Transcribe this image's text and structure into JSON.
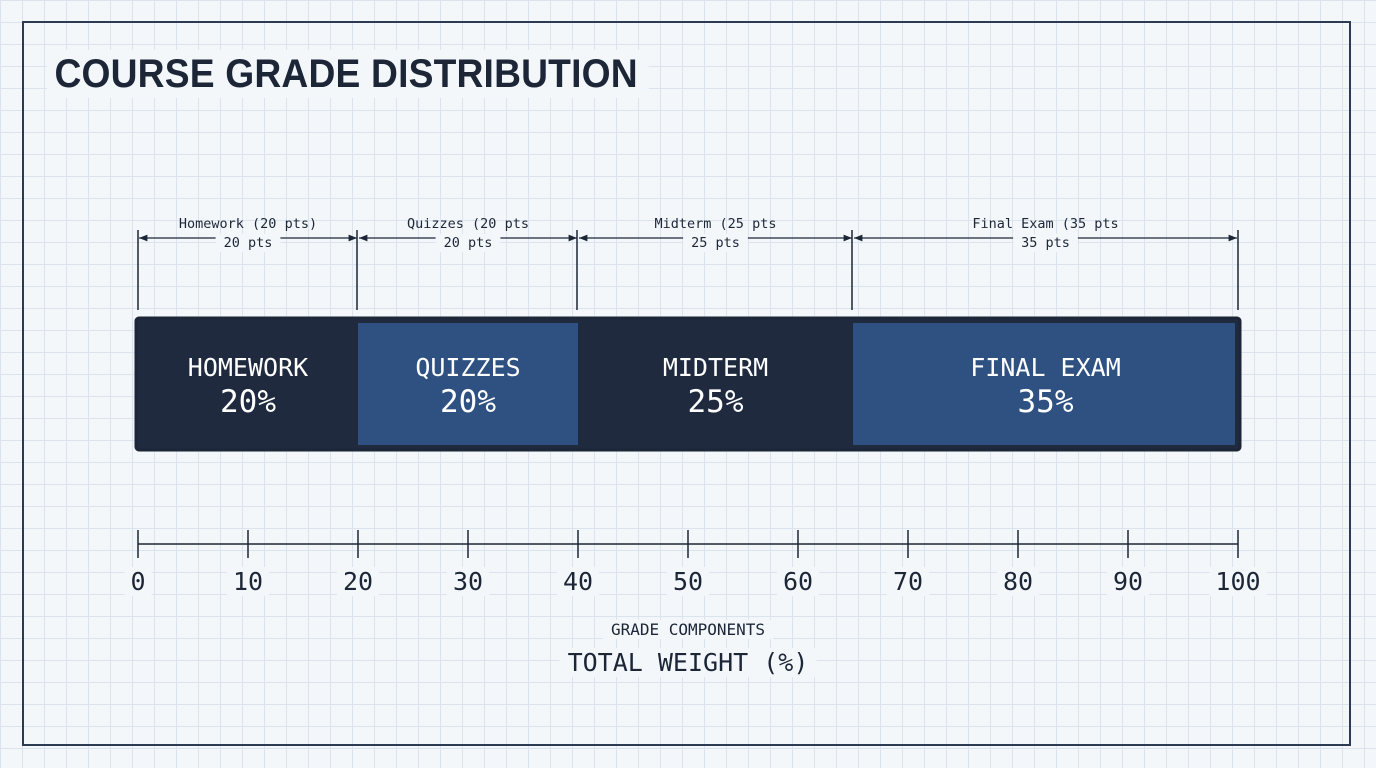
{
  "title": "COURSE GRADE DISTRIBUTION",
  "chart_data": {
    "type": "bar",
    "orientation": "horizontal-stacked",
    "series": [
      {
        "name": "HOMEWORK",
        "value": 20,
        "label": "20%",
        "dim_label": "Homework (20 pts)",
        "dim_sub": "20 pts",
        "color": "#1f2a3f"
      },
      {
        "name": "QUIZZES",
        "value": 20,
        "label": "20%",
        "dim_label": "Quizzes (20 pts",
        "dim_sub": "20 pts",
        "color": "#2e5182"
      },
      {
        "name": "MIDTERM",
        "value": 25,
        "label": "25%",
        "dim_label": "Midterm (25 pts",
        "dim_sub": "25 pts",
        "color": "#1f2a3f"
      },
      {
        "name": "FINAL EXAM",
        "value": 35,
        "label": "35%",
        "dim_label": "Final Exam (35 pts",
        "dim_sub": "35 pts",
        "color": "#2e5182"
      }
    ],
    "xlim": [
      0,
      100
    ],
    "ticks": [
      0,
      10,
      20,
      30,
      40,
      50,
      60,
      70,
      80,
      90,
      100
    ],
    "xlabel_top": "GRADE COMPONENTS",
    "xlabel": "TOTAL WEIGHT (%)",
    "grid": true,
    "accent": "#1c2637"
  }
}
